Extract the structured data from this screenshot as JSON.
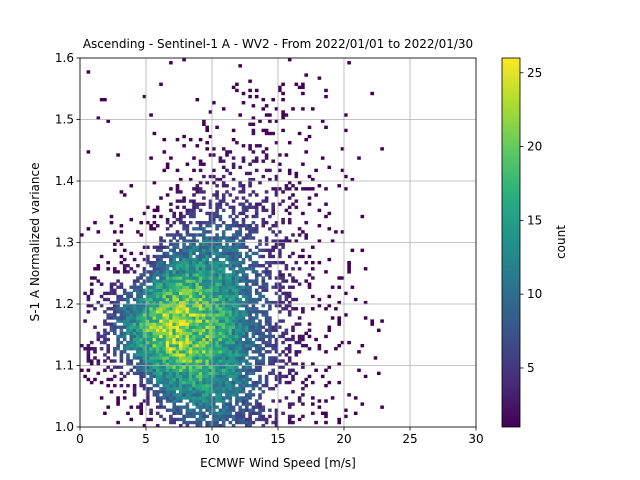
{
  "chart_data": {
    "type": "heatmap",
    "title": "Ascending - Sentinel-1 A - WV2 - From 2022/01/01 to 2022/01/30",
    "xlabel": "ECMWF Wind Speed [m/s]",
    "ylabel": "S-1 A Normalized variance",
    "xlim": [
      0,
      30
    ],
    "ylim": [
      1.0,
      1.6
    ],
    "xticks": [
      "0",
      "5",
      "10",
      "15",
      "20",
      "25",
      "30"
    ],
    "yticks": [
      "1.0",
      "1.1",
      "1.2",
      "1.3",
      "1.4",
      "1.5",
      "1.6"
    ],
    "grid": true,
    "bin_width_x": 0.25,
    "bin_width_y": 0.005,
    "colormap": "viridis",
    "colorbar": {
      "label": "count",
      "min": 1,
      "max": 26,
      "ticks": [
        "5",
        "10",
        "15",
        "20",
        "25"
      ]
    },
    "density": {
      "center_x": 7.0,
      "center_y": 1.16,
      "peak_count": 26
    }
  }
}
